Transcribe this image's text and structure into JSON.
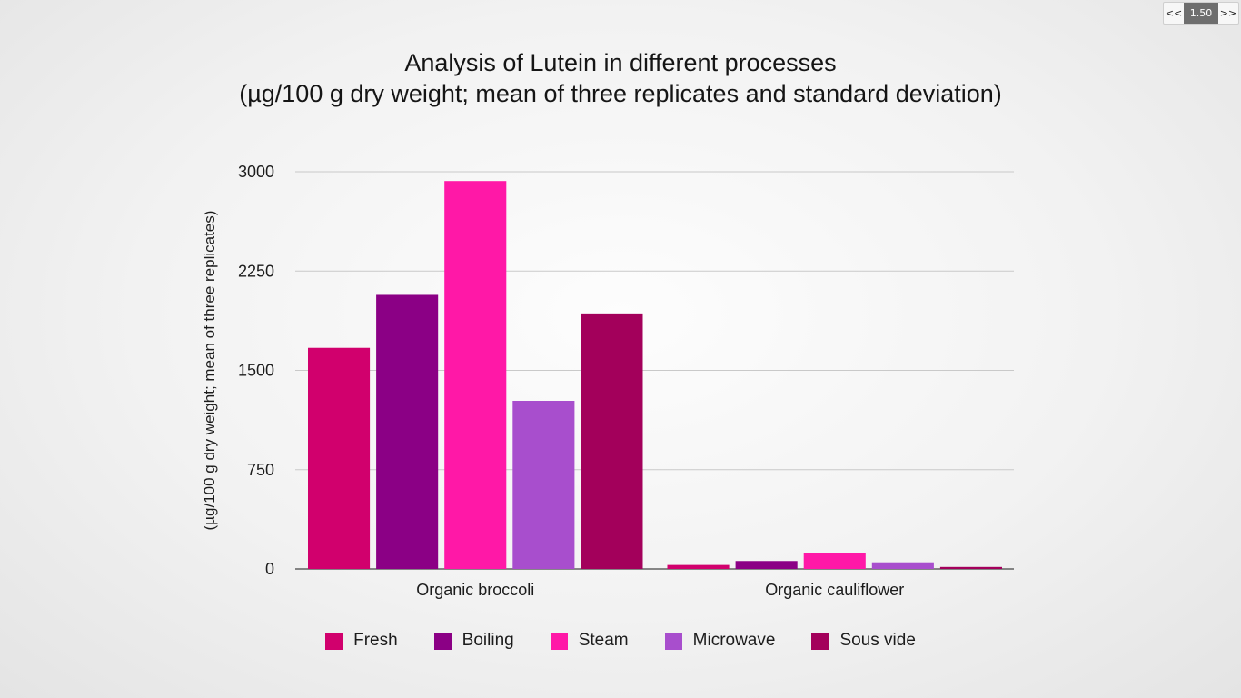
{
  "title_line1": "Analysis of Lutein in different processes",
  "title_line2": "(µg/100 g dry weight; mean of three replicates and standard deviation)",
  "player": {
    "prev_label": "<<",
    "rate_label": "1.50",
    "next_label": ">>"
  },
  "chart_data": {
    "type": "bar",
    "title": "Analysis of Lutein in different processes (µg/100 g dry weight; mean of three replicates and standard deviation)",
    "ylabel": "(µg/100 g dry weight; mean of three replicates)",
    "xlabel": "",
    "ylim": [
      0,
      3000
    ],
    "yticks": [
      "0",
      "750",
      "1500",
      "2250",
      "3000"
    ],
    "grid": true,
    "legend_position": "bottom",
    "categories": [
      "Organic broccoli",
      "Organic cauliflower"
    ],
    "series": [
      {
        "name": "Fresh",
        "color": "#d1006d",
        "values": [
          1670,
          30
        ]
      },
      {
        "name": "Boiling",
        "color": "#8b0085",
        "values": [
          2070,
          60
        ]
      },
      {
        "name": "Steam",
        "color": "#ff18a7",
        "values": [
          2930,
          120
        ]
      },
      {
        "name": "Microwave",
        "color": "#a84ecd",
        "values": [
          1270,
          50
        ]
      },
      {
        "name": "Sous vide",
        "color": "#a3005b",
        "values": [
          1930,
          15
        ]
      }
    ]
  }
}
